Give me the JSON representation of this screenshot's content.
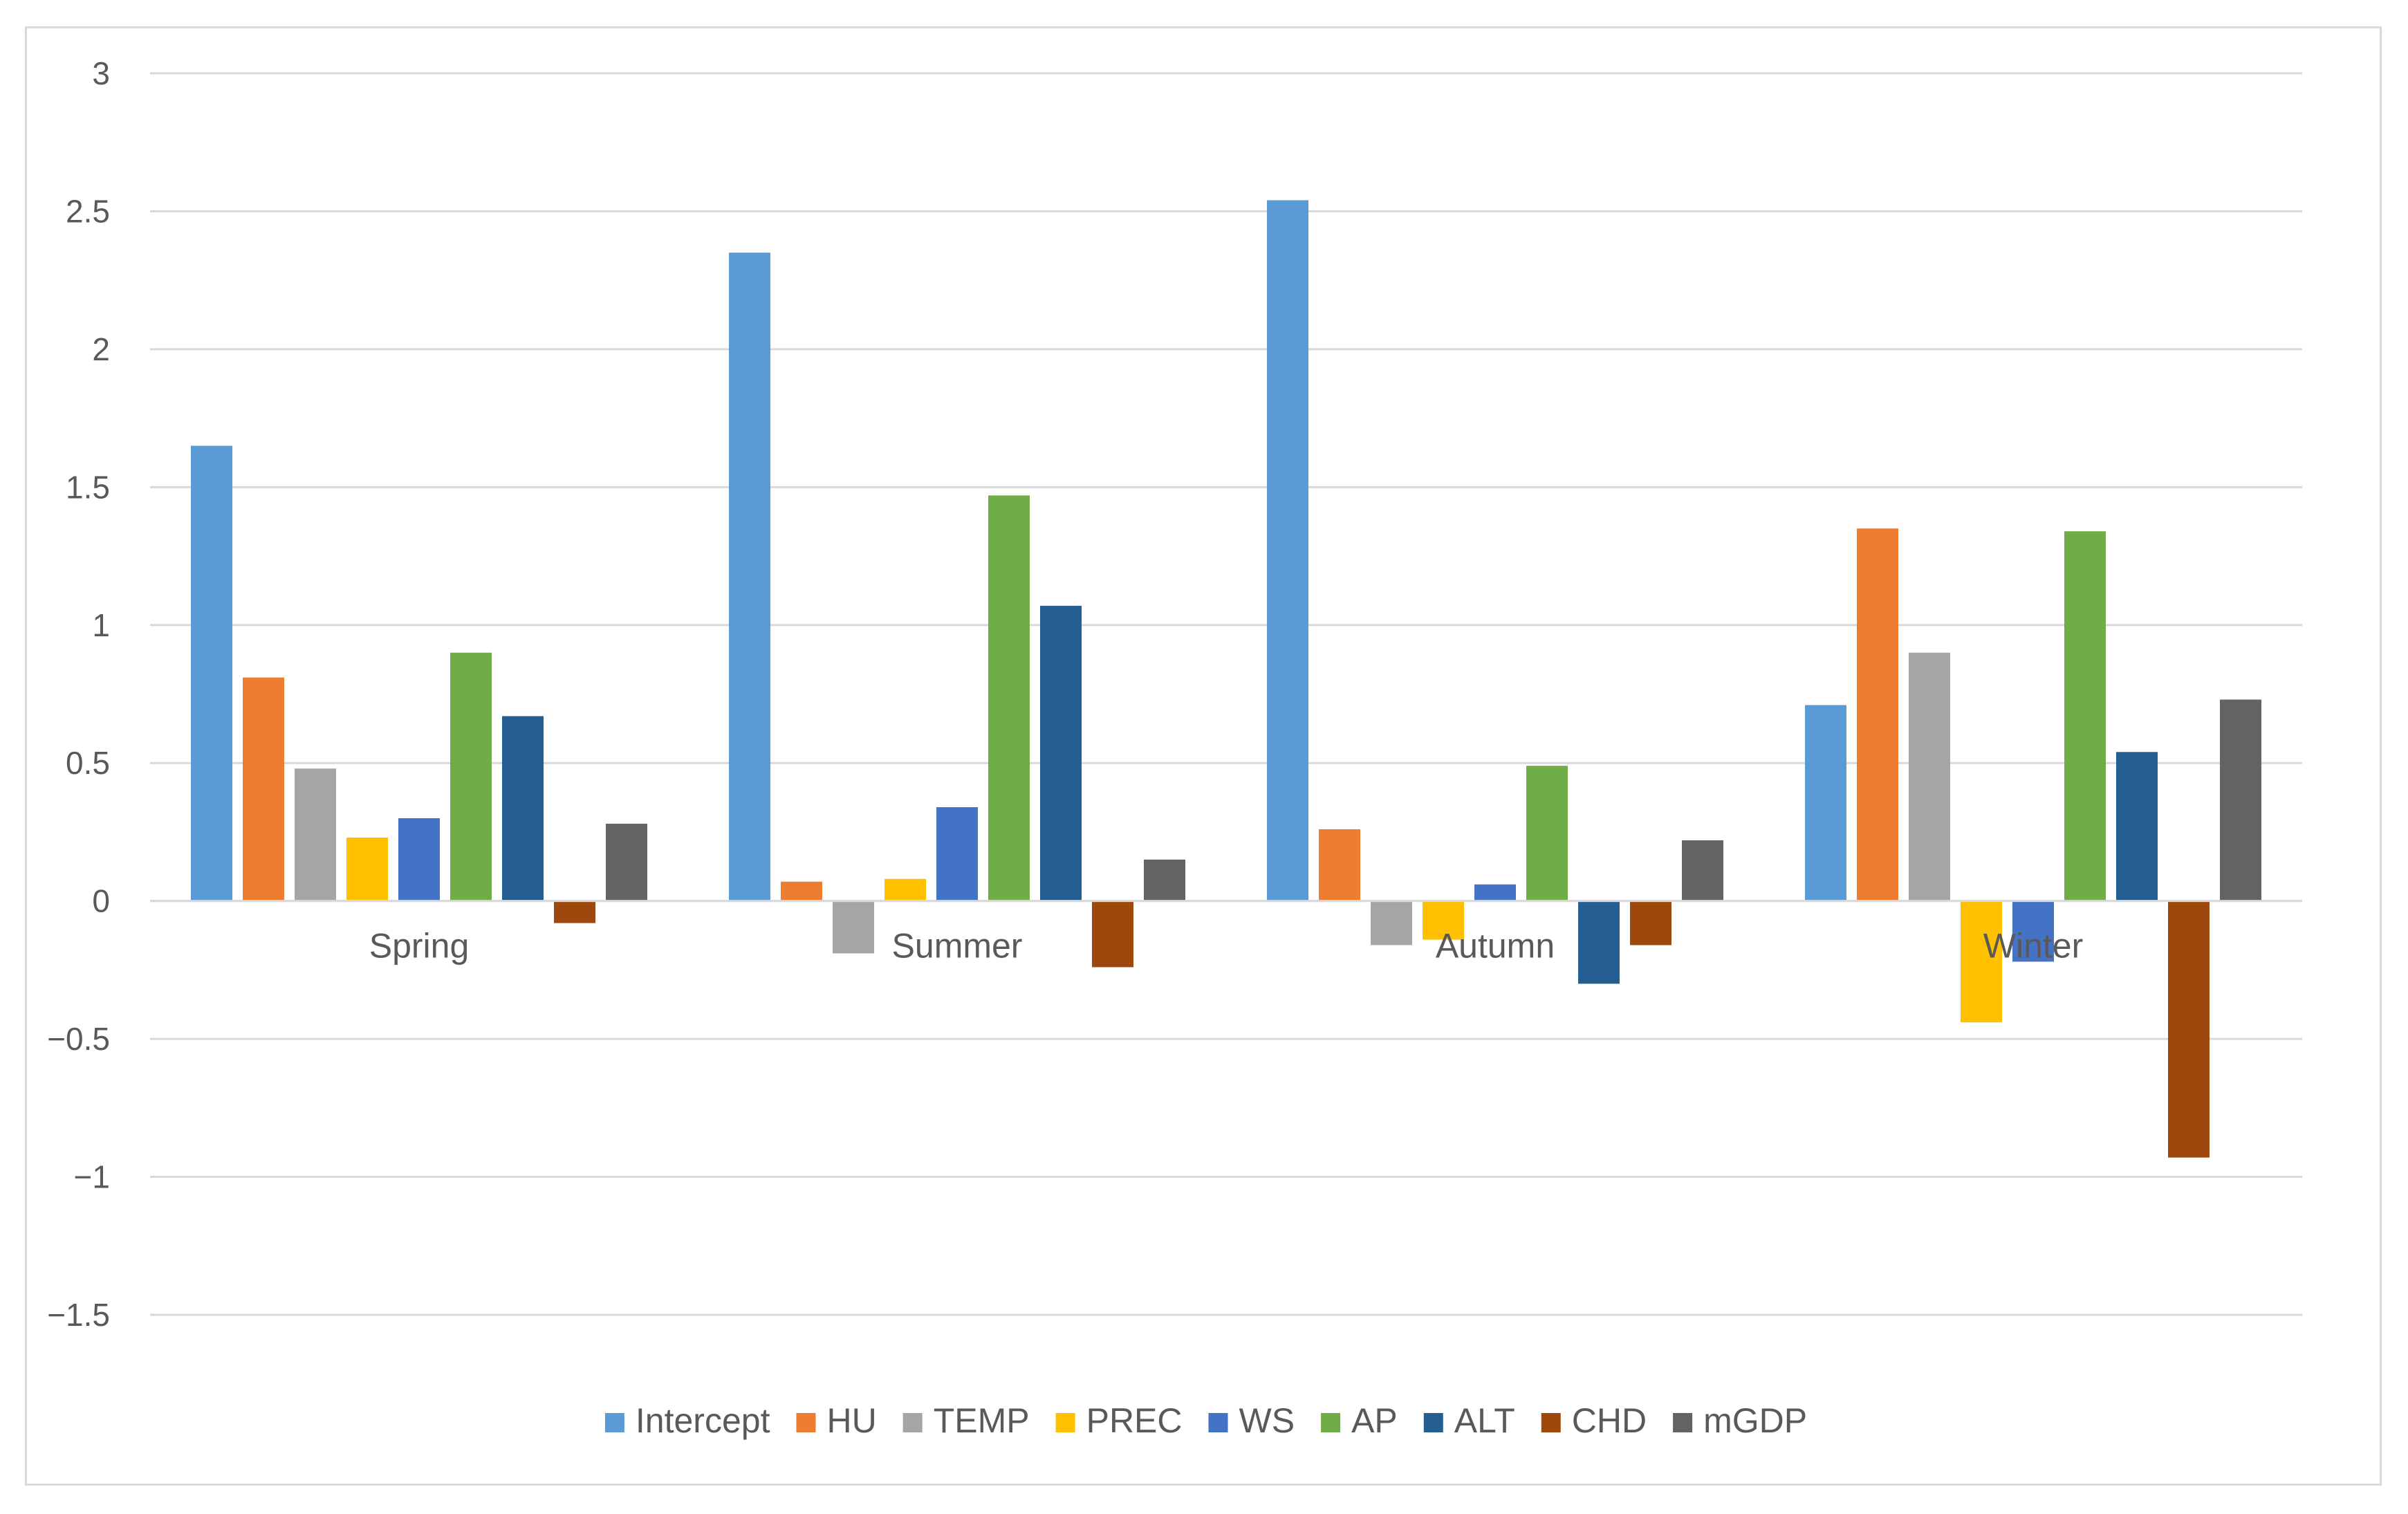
{
  "chart_data": {
    "type": "bar",
    "title": "",
    "xlabel": "",
    "ylabel": "",
    "categories": [
      "Spring",
      "Summer",
      "Autumn",
      "Winter"
    ],
    "ylim": [
      -1.5,
      3
    ],
    "yticks": [
      3,
      2.5,
      2,
      1.5,
      1,
      0.5,
      0,
      -0.5,
      -1,
      -1.5
    ],
    "ytick_labels": [
      "3",
      "2.5",
      "2",
      "1.5",
      "1",
      "0.5",
      "0",
      "−0.5",
      "−1",
      "−1.5"
    ],
    "grid": true,
    "legend_position": "bottom",
    "series": [
      {
        "name": "Intercept",
        "color": "#5b9bd5",
        "values": [
          1.65,
          2.35,
          2.54,
          0.71
        ]
      },
      {
        "name": "HU",
        "color": "#ed7d31",
        "values": [
          0.81,
          0.07,
          0.26,
          1.35
        ]
      },
      {
        "name": "TEMP",
        "color": "#a5a5a5",
        "values": [
          0.48,
          -0.19,
          -0.16,
          0.9
        ]
      },
      {
        "name": "PREC",
        "color": "#ffc000",
        "values": [
          0.23,
          0.08,
          -0.14,
          -0.44
        ]
      },
      {
        "name": "WS",
        "color": "#4472c4",
        "values": [
          0.3,
          0.34,
          0.06,
          -0.22
        ]
      },
      {
        "name": "AP",
        "color": "#70ad47",
        "values": [
          0.9,
          1.47,
          0.49,
          1.34
        ]
      },
      {
        "name": "ALT",
        "color": "#255e91",
        "values": [
          0.67,
          1.07,
          -0.3,
          0.54
        ]
      },
      {
        "name": "CHD",
        "color": "#9e480e",
        "values": [
          -0.08,
          -0.24,
          -0.16,
          -0.93
        ]
      },
      {
        "name": "mGDP",
        "color": "#636363",
        "values": [
          0.28,
          0.15,
          0.22,
          0.73
        ]
      }
    ]
  }
}
